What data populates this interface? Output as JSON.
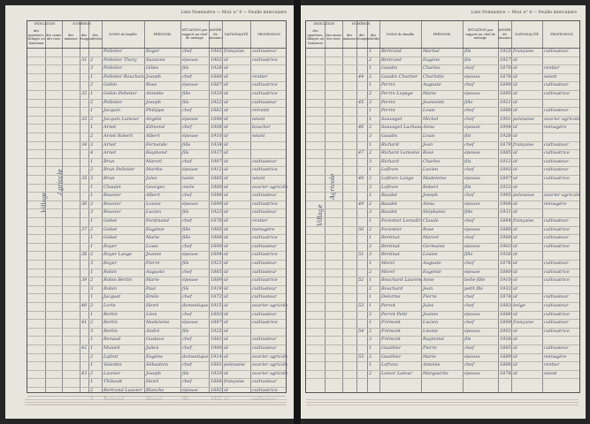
{
  "document": {
    "type": "Liste nominative de recensement, feuilles intercalaires"
  },
  "headers": {
    "indication": "INDICATION",
    "indication_sub": [
      "des quartiers, villages ou hameaux",
      "des noms des rues"
    ],
    "numeros": "NUMÉROS",
    "numeros_sub": [
      "des maisons",
      "des ménages",
      "des individus"
    ],
    "noms": "NOMS de famille",
    "prenoms": "PRÉNOMS",
    "situation": "SITUATION par rapport au chef de ménage",
    "annee": "ANNÉE de naissance",
    "nationalite": "NATIONALITÉ",
    "profession": "PROFESSION"
  },
  "left": {
    "running_head": "Liste Nominative — Mod. n° 8 — Feuille intercalaire",
    "margin_notes": [
      "Village",
      "Agricole"
    ],
    "rows": [
      [
        "",
        "",
        "",
        "Pelletier",
        "Roger",
        "chef",
        "1902",
        "française",
        "cultivateur"
      ],
      [
        "",
        "31",
        "2",
        "Pelletier Thory",
        "Suzanne",
        "épouse",
        "1902",
        "id",
        "cultivatrice"
      ],
      [
        "",
        "",
        "3",
        "Pelletier",
        "Gilles",
        "fils",
        "1926",
        "id",
        ""
      ],
      [
        "",
        "",
        "1",
        "Pelletier Bouchard",
        "Joseph",
        "chef",
        "1880",
        "id",
        "rentier"
      ],
      [
        "",
        "",
        "2",
        "Gobin",
        "Rose",
        "épouse",
        "1887",
        "id",
        "cultivatrice"
      ],
      [
        "",
        "32",
        "1",
        "Gobin Pelletier",
        "Annette",
        "fille",
        "1920",
        "id",
        "cultivatrice"
      ],
      [
        "",
        "",
        "2",
        "Pelletier",
        "Joseph",
        "fils",
        "1922",
        "id",
        "cultivateur"
      ],
      [
        "",
        "",
        "1",
        "Jacquin",
        "Philippe",
        "chef",
        "1882",
        "id",
        "retraité"
      ],
      [
        "",
        "33",
        "2",
        "Jacquin Lamour",
        "Angèle",
        "épouse",
        "1898",
        "id",
        "néant"
      ],
      [
        "",
        "",
        "1",
        "Arnet",
        "Edmond",
        "chef",
        "1908",
        "id",
        "boucher"
      ],
      [
        "",
        "",
        "2",
        "Arnet Robert",
        "Albert",
        "épouse",
        "1910",
        "id",
        "néant"
      ],
      [
        "",
        "34",
        "3",
        "Arnet",
        "Fernande",
        "fille",
        "1934",
        "id",
        ""
      ],
      [
        "",
        "",
        "4",
        "Arnet",
        "Raymond",
        "fils",
        "1937",
        "id",
        ""
      ],
      [
        "",
        "",
        "1",
        "Brun",
        "Marcel",
        "chef",
        "1907",
        "id",
        "cultivateur"
      ],
      [
        "",
        "",
        "2",
        "Brun Pelletier",
        "Marthe",
        "épouse",
        "1912",
        "id",
        "cultivatrice"
      ],
      [
        "",
        "35",
        "3",
        "Brun",
        "Jules",
        "tante",
        "1865",
        "id",
        "néant"
      ],
      [
        "",
        "",
        "1",
        "Chaulet",
        "Georges",
        "oncle",
        "1900",
        "id",
        "ouvrier agricole"
      ],
      [
        "",
        "",
        "1",
        "Bouvier",
        "Albert",
        "chef",
        "1896",
        "id",
        "cultivateur"
      ],
      [
        "",
        "36",
        "2",
        "Bouvier",
        "Louise",
        "épouse",
        "1899",
        "id",
        "cultivatrice"
      ],
      [
        "",
        "",
        "3",
        "Bouvier",
        "Lucien",
        "fils",
        "1923",
        "id",
        "cultivateur"
      ],
      [
        "",
        "",
        "1",
        "Gobet",
        "Ferdinand",
        "chef",
        "1878",
        "id",
        "rentier"
      ],
      [
        "",
        "37",
        "2",
        "Gobet",
        "Eugénie",
        "fille",
        "1905",
        "id",
        "ménagère"
      ],
      [
        "",
        "",
        "1",
        "Gobet",
        "Marie",
        "fille",
        "1908",
        "id",
        "cultivatrice"
      ],
      [
        "",
        "",
        "1",
        "Royer",
        "Louis",
        "chef",
        "1890",
        "id",
        "cultivateur"
      ],
      [
        "",
        "38",
        "2",
        "Royer Lange",
        "Jeanne",
        "épouse",
        "1894",
        "id",
        "cultivatrice"
      ],
      [
        "",
        "",
        "3",
        "Royer",
        "Pierre",
        "fils",
        "1921",
        "id",
        "cultivateur"
      ],
      [
        "",
        "",
        "1",
        "Robin",
        "Auguste",
        "chef",
        "1885",
        "id",
        "cultivateur"
      ],
      [
        "",
        "39",
        "2",
        "Robin Bertin",
        "Marie",
        "épouse",
        "1889",
        "id",
        "cultivatrice"
      ],
      [
        "",
        "",
        "3",
        "Robin",
        "Paul",
        "fils",
        "1919",
        "id",
        "cultivateur"
      ],
      [
        "",
        "",
        "1",
        "Jacquet",
        "Émile",
        "chef",
        "1872",
        "id",
        "cultivateur"
      ],
      [
        "",
        "40",
        "2",
        "Lorin",
        "Henri",
        "domestique",
        "1915",
        "id",
        "ouvrier agricole"
      ],
      [
        "",
        "",
        "1",
        "Bertin",
        "Léon",
        "chef",
        "1893",
        "id",
        "cultivateur"
      ],
      [
        "",
        "41",
        "2",
        "Bertin",
        "Madeleine",
        "épouse",
        "1897",
        "id",
        "cultivatrice"
      ],
      [
        "",
        "",
        "3",
        "Bertin",
        "André",
        "fils",
        "1925",
        "id",
        ""
      ],
      [
        "",
        "",
        "1",
        "Renaud",
        "Gustave",
        "chef",
        "1881",
        "id",
        "cultivateur"
      ],
      [
        "",
        "42",
        "1",
        "Mulard",
        "Julien",
        "chef",
        "1900",
        "id",
        "cultivateur"
      ],
      [
        "",
        "",
        "2",
        "Lafont",
        "Eugène",
        "domestique",
        "1914",
        "id",
        "ouvrier agricole"
      ],
      [
        "",
        "",
        "1",
        "Valentin",
        "Sébastien",
        "chef",
        "1881",
        "polonaise",
        "ouvrier agricole"
      ],
      [
        "",
        "43",
        "2",
        "Lasnier",
        "Joseph",
        "fils",
        "1920",
        "id",
        "ouvrier agricole"
      ],
      [
        "",
        "",
        "1",
        "Thibault",
        "Henri",
        "chef",
        "1888",
        "française",
        "cultivateur"
      ],
      [
        "",
        "",
        "2",
        "Bertrand Lauvier",
        "Blanche",
        "épouse",
        "1892",
        "id",
        "cultivatrice"
      ],
      [
        "",
        "",
        "3",
        "Bertrand",
        "Marcel",
        "fils",
        "1922",
        "id",
        "cultivateur"
      ]
    ]
  },
  "right": {
    "running_head": "Liste Nominative — Mod. n° 8 — Feuille intercalaire",
    "margin_notes": [
      "Village",
      "Agricole"
    ],
    "rows": [
      [
        "",
        "",
        "1",
        "Bertrand",
        "Martial",
        "fils",
        "1925",
        "française",
        "cultivateur"
      ],
      [
        "",
        "",
        "2",
        "Bertrand",
        "Eugène",
        "fils",
        "1927",
        "id",
        ""
      ],
      [
        "",
        "",
        "1",
        "Gaudin",
        "Charles",
        "chef",
        "1870",
        "id",
        "rentier"
      ],
      [
        "",
        "44",
        "2",
        "Gaudin Chartier",
        "Charlotte",
        "épouse",
        "1876",
        "id",
        "néant"
      ],
      [
        "",
        "",
        "1",
        "Perrin",
        "Auguste",
        "chef",
        "1890",
        "id",
        "cultivateur"
      ],
      [
        "",
        "",
        "2",
        "Perrin Lepage",
        "Marie",
        "épouse",
        "1895",
        "id",
        "cultivatrice"
      ],
      [
        "",
        "45",
        "3",
        "Perrin",
        "Jeannette",
        "fille",
        "1921",
        "id",
        ""
      ],
      [
        "",
        "",
        "1",
        "Perrin",
        "Louis",
        "chef",
        "1888",
        "id",
        "cultivateur"
      ],
      [
        "",
        "",
        "1",
        "Sauvaget",
        "Michel",
        "chef",
        "1901",
        "polonaise",
        "ouvrier agricole"
      ],
      [
        "",
        "46",
        "2",
        "Sauvaget Lachaud",
        "Anna",
        "épouse",
        "1904",
        "id",
        "ménagère"
      ],
      [
        "",
        "",
        "3",
        "Gaudin",
        "Louis",
        "fils",
        "1926",
        "id",
        ""
      ],
      [
        "",
        "",
        "1",
        "Richard",
        "Jean",
        "chef",
        "1879",
        "française",
        "cultivateur"
      ],
      [
        "",
        "47",
        "2",
        "Richard Lemoine",
        "Rose",
        "épouse",
        "1885",
        "id",
        "cultivatrice"
      ],
      [
        "",
        "",
        "3",
        "Richard",
        "Charles",
        "fils",
        "1912",
        "id",
        "cultivateur"
      ],
      [
        "",
        "",
        "1",
        "Lefèvre",
        "Lucien",
        "chef",
        "1892",
        "id",
        "cultivateur"
      ],
      [
        "",
        "48",
        "2",
        "Lefèvre Lange",
        "Madeleine",
        "épouse",
        "1897",
        "id",
        "cultivatrice"
      ],
      [
        "",
        "",
        "3",
        "Lefèvre",
        "Robert",
        "fils",
        "1922",
        "id",
        ""
      ],
      [
        "",
        "",
        "1",
        "Baudet",
        "Joseph",
        "chef",
        "1905",
        "polonaise",
        "ouvrier agricole"
      ],
      [
        "",
        "49",
        "2",
        "Baudet",
        "Anna",
        "épouse",
        "1908",
        "id",
        "ménagère"
      ],
      [
        "",
        "",
        "3",
        "Baudet",
        "Stéphanie",
        "fille",
        "1931",
        "id",
        ""
      ],
      [
        "",
        "",
        "1",
        "Forestier Lemaître",
        "Claude",
        "chef",
        "1884",
        "française",
        "cultivateur"
      ],
      [
        "",
        "50",
        "2",
        "Forestier",
        "Rose",
        "épouse",
        "1886",
        "id",
        "cultivatrice"
      ],
      [
        "",
        "",
        "1",
        "Bertinat",
        "Marcel",
        "chef",
        "1900",
        "id",
        "cultivateur"
      ],
      [
        "",
        "",
        "2",
        "Bertinat",
        "Germaine",
        "épouse",
        "1903",
        "id",
        "cultivatrice"
      ],
      [
        "",
        "51",
        "3",
        "Bertinat",
        "Louise",
        "fille",
        "1926",
        "id",
        ""
      ],
      [
        "",
        "",
        "1",
        "Morel",
        "Auguste",
        "chef",
        "1876",
        "id",
        "cultivateur"
      ],
      [
        "",
        "",
        "2",
        "Morel",
        "Eugénie",
        "épouse",
        "1880",
        "id",
        "cultivatrice"
      ],
      [
        "",
        "52",
        "1",
        "Bouchard Laurent",
        "Anne",
        "belle-fille",
        "1910",
        "id",
        "cultivatrice"
      ],
      [
        "",
        "",
        "2",
        "Bouchard",
        "Jean",
        "petit-fils",
        "1932",
        "id",
        ""
      ],
      [
        "",
        "",
        "1",
        "Delorme",
        "Pierre",
        "chef",
        "1874",
        "id",
        "cultivateur"
      ],
      [
        "",
        "53",
        "1",
        "Perrot",
        "Jules",
        "chef",
        "1883",
        "belge",
        "cultivateur"
      ],
      [
        "",
        "",
        "2",
        "Perrot Petit",
        "Jeanne",
        "épouse",
        "1888",
        "id",
        "cultivatrice"
      ],
      [
        "",
        "",
        "1",
        "Frémont",
        "Lucien",
        "chef",
        "1899",
        "française",
        "cultivateur"
      ],
      [
        "",
        "54",
        "2",
        "Frémont",
        "Léonie",
        "épouse",
        "1902",
        "id",
        "cultivatrice"
      ],
      [
        "",
        "",
        "3",
        "Frémont",
        "Raymond",
        "fils",
        "1926",
        "id",
        ""
      ],
      [
        "",
        "",
        "1",
        "Gauthier",
        "Pierre",
        "chef",
        "1885",
        "id",
        "cultivateur"
      ],
      [
        "",
        "55",
        "2",
        "Gauthier",
        "Marie",
        "épouse",
        "1889",
        "id",
        "ménagère"
      ],
      [
        "",
        "",
        "1",
        "Lefranc",
        "Antoine",
        "chef",
        "1868",
        "id",
        "rentier"
      ],
      [
        "",
        "",
        "2",
        "Lenoir Latour",
        "Marguerite",
        "épouse",
        "1874",
        "id",
        "néant"
      ]
    ]
  }
}
